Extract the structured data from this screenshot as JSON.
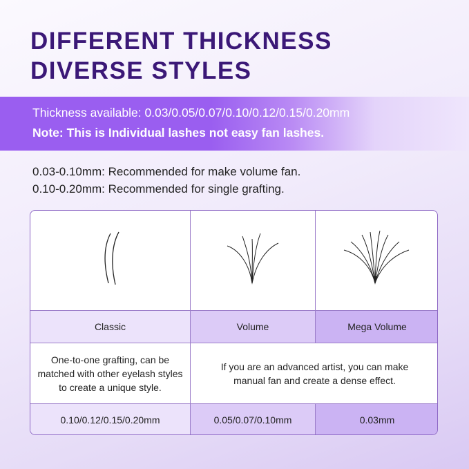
{
  "title": {
    "line1": "DIFFERENT THICKNESS",
    "line2": "DIVERSE STYLES"
  },
  "band": {
    "thickness": "Thickness available: 0.03/0.05/0.07/0.10/0.12/0.15/0.20mm",
    "note": "Note: This is Individual lashes not easy fan lashes."
  },
  "recommend": [
    "0.03-0.10mm: Recommended for make volume fan.",
    "0.10-0.20mm: Recommended for single grafting."
  ],
  "table": {
    "styles": [
      "Classic",
      "Volume",
      "Mega Volume"
    ],
    "descriptions": {
      "classic": "One-to-one grafting, can be matched with other eyelash styles to create a unique style.",
      "volume": "If you are an advanced artist, you can make manual fan and create a dense effect."
    },
    "thickness": [
      "0.10/0.12/0.15/0.20mm",
      "0.05/0.07/0.10mm",
      "0.03mm"
    ]
  },
  "colors": {
    "title": "#3b1877",
    "band": "#9a5ef0",
    "label_light": "#ece3fb",
    "label_mid": "#dccbf7",
    "label_dark": "#cbb3f3"
  }
}
